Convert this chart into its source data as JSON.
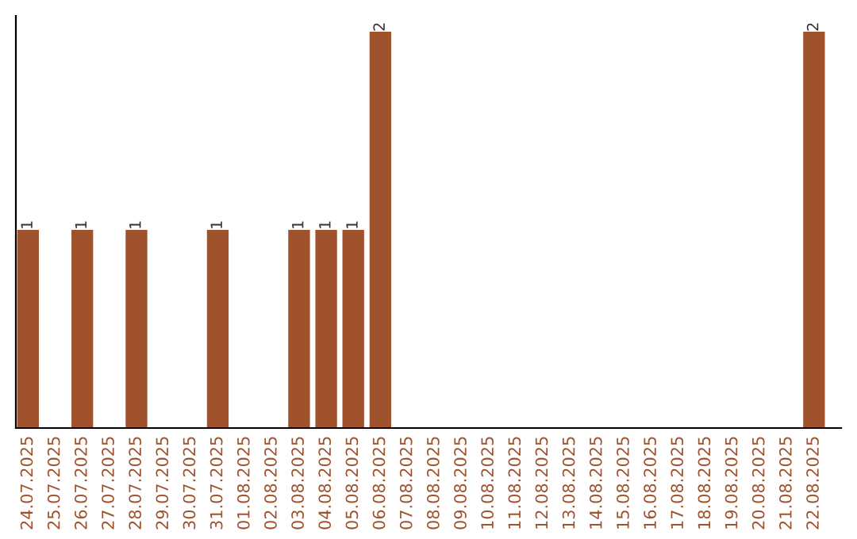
{
  "chart_data": {
    "type": "bar",
    "categories": [
      "24.07.2025",
      "25.07.2025",
      "26.07.2025",
      "27.07.2025",
      "28.07.2025",
      "29.07.2025",
      "30.07.2025",
      "31.07.2025",
      "01.08.2025",
      "02.08.2025",
      "03.08.2025",
      "04.08.2025",
      "05.08.2025",
      "06.08.2025",
      "07.08.2025",
      "08.08.2025",
      "09.08.2025",
      "10.08.2025",
      "11.08.2025",
      "12.08.2025",
      "13.08.2025",
      "14.08.2025",
      "15.08.2025",
      "16.08.2025",
      "17.08.2025",
      "18.08.2025",
      "19.08.2025",
      "20.08.2025",
      "21.08.2025",
      "22.08.2025"
    ],
    "values": [
      1,
      0,
      1,
      0,
      1,
      0,
      0,
      1,
      0,
      0,
      1,
      1,
      1,
      2,
      0,
      0,
      0,
      0,
      0,
      0,
      0,
      0,
      0,
      0,
      0,
      0,
      0,
      0,
      0,
      2
    ],
    "value_labels": [
      "1",
      null,
      "1",
      null,
      "1",
      null,
      null,
      "1",
      null,
      null,
      "1",
      "1",
      "1",
      "2",
      null,
      null,
      null,
      null,
      null,
      null,
      null,
      null,
      null,
      null,
      null,
      null,
      null,
      null,
      null,
      "2"
    ],
    "color": "#a0522d",
    "tick_labels": "x",
    "grid": false,
    "legend": false
  }
}
